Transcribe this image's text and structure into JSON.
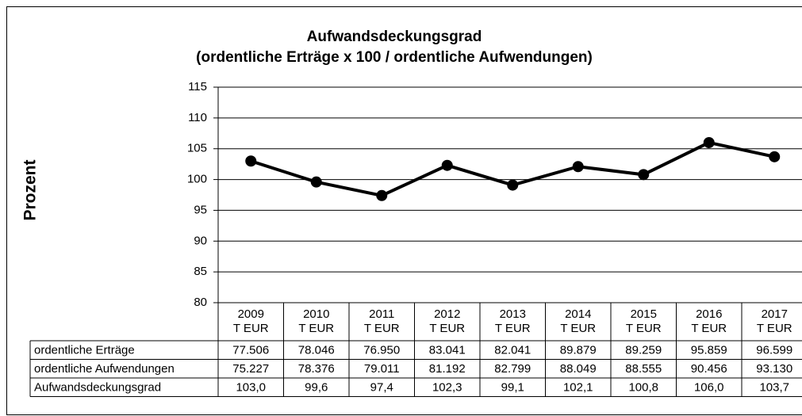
{
  "chart_data": {
    "type": "line",
    "title": "Aufwandsdeckungsgrad",
    "subtitle": "(ordentliche Erträge x 100 / ordentliche Aufwendungen)",
    "y_label": "Prozent",
    "categories": [
      "2009",
      "2010",
      "2011",
      "2012",
      "2013",
      "2014",
      "2015",
      "2016",
      "2017"
    ],
    "category_unit": "T EUR",
    "values": [
      103.0,
      99.6,
      97.4,
      102.3,
      99.1,
      102.1,
      100.8,
      106.0,
      103.7
    ],
    "value_labels": [
      "103,0",
      "99,6",
      "97,4",
      "102,3",
      "99,1",
      "102,1",
      "100,8",
      "106,0",
      "103,7"
    ],
    "color": "#000000",
    "ylim": [
      80,
      115
    ],
    "yticks": [
      80,
      85,
      90,
      95,
      100,
      105,
      110,
      115
    ],
    "grid": true
  },
  "table": {
    "rows": [
      {
        "label": "ordentliche Erträge",
        "cells": [
          "77.506",
          "78.046",
          "76.950",
          "83.041",
          "82.041",
          "89.879",
          "89.259",
          "95.859",
          "96.599"
        ]
      },
      {
        "label": "ordentliche Aufwendungen",
        "cells": [
          "75.227",
          "78.376",
          "79.011",
          "81.192",
          "82.799",
          "88.049",
          "88.555",
          "90.456",
          "93.130"
        ]
      },
      {
        "label": "Aufwandsdeckungsgrad"
      }
    ]
  }
}
